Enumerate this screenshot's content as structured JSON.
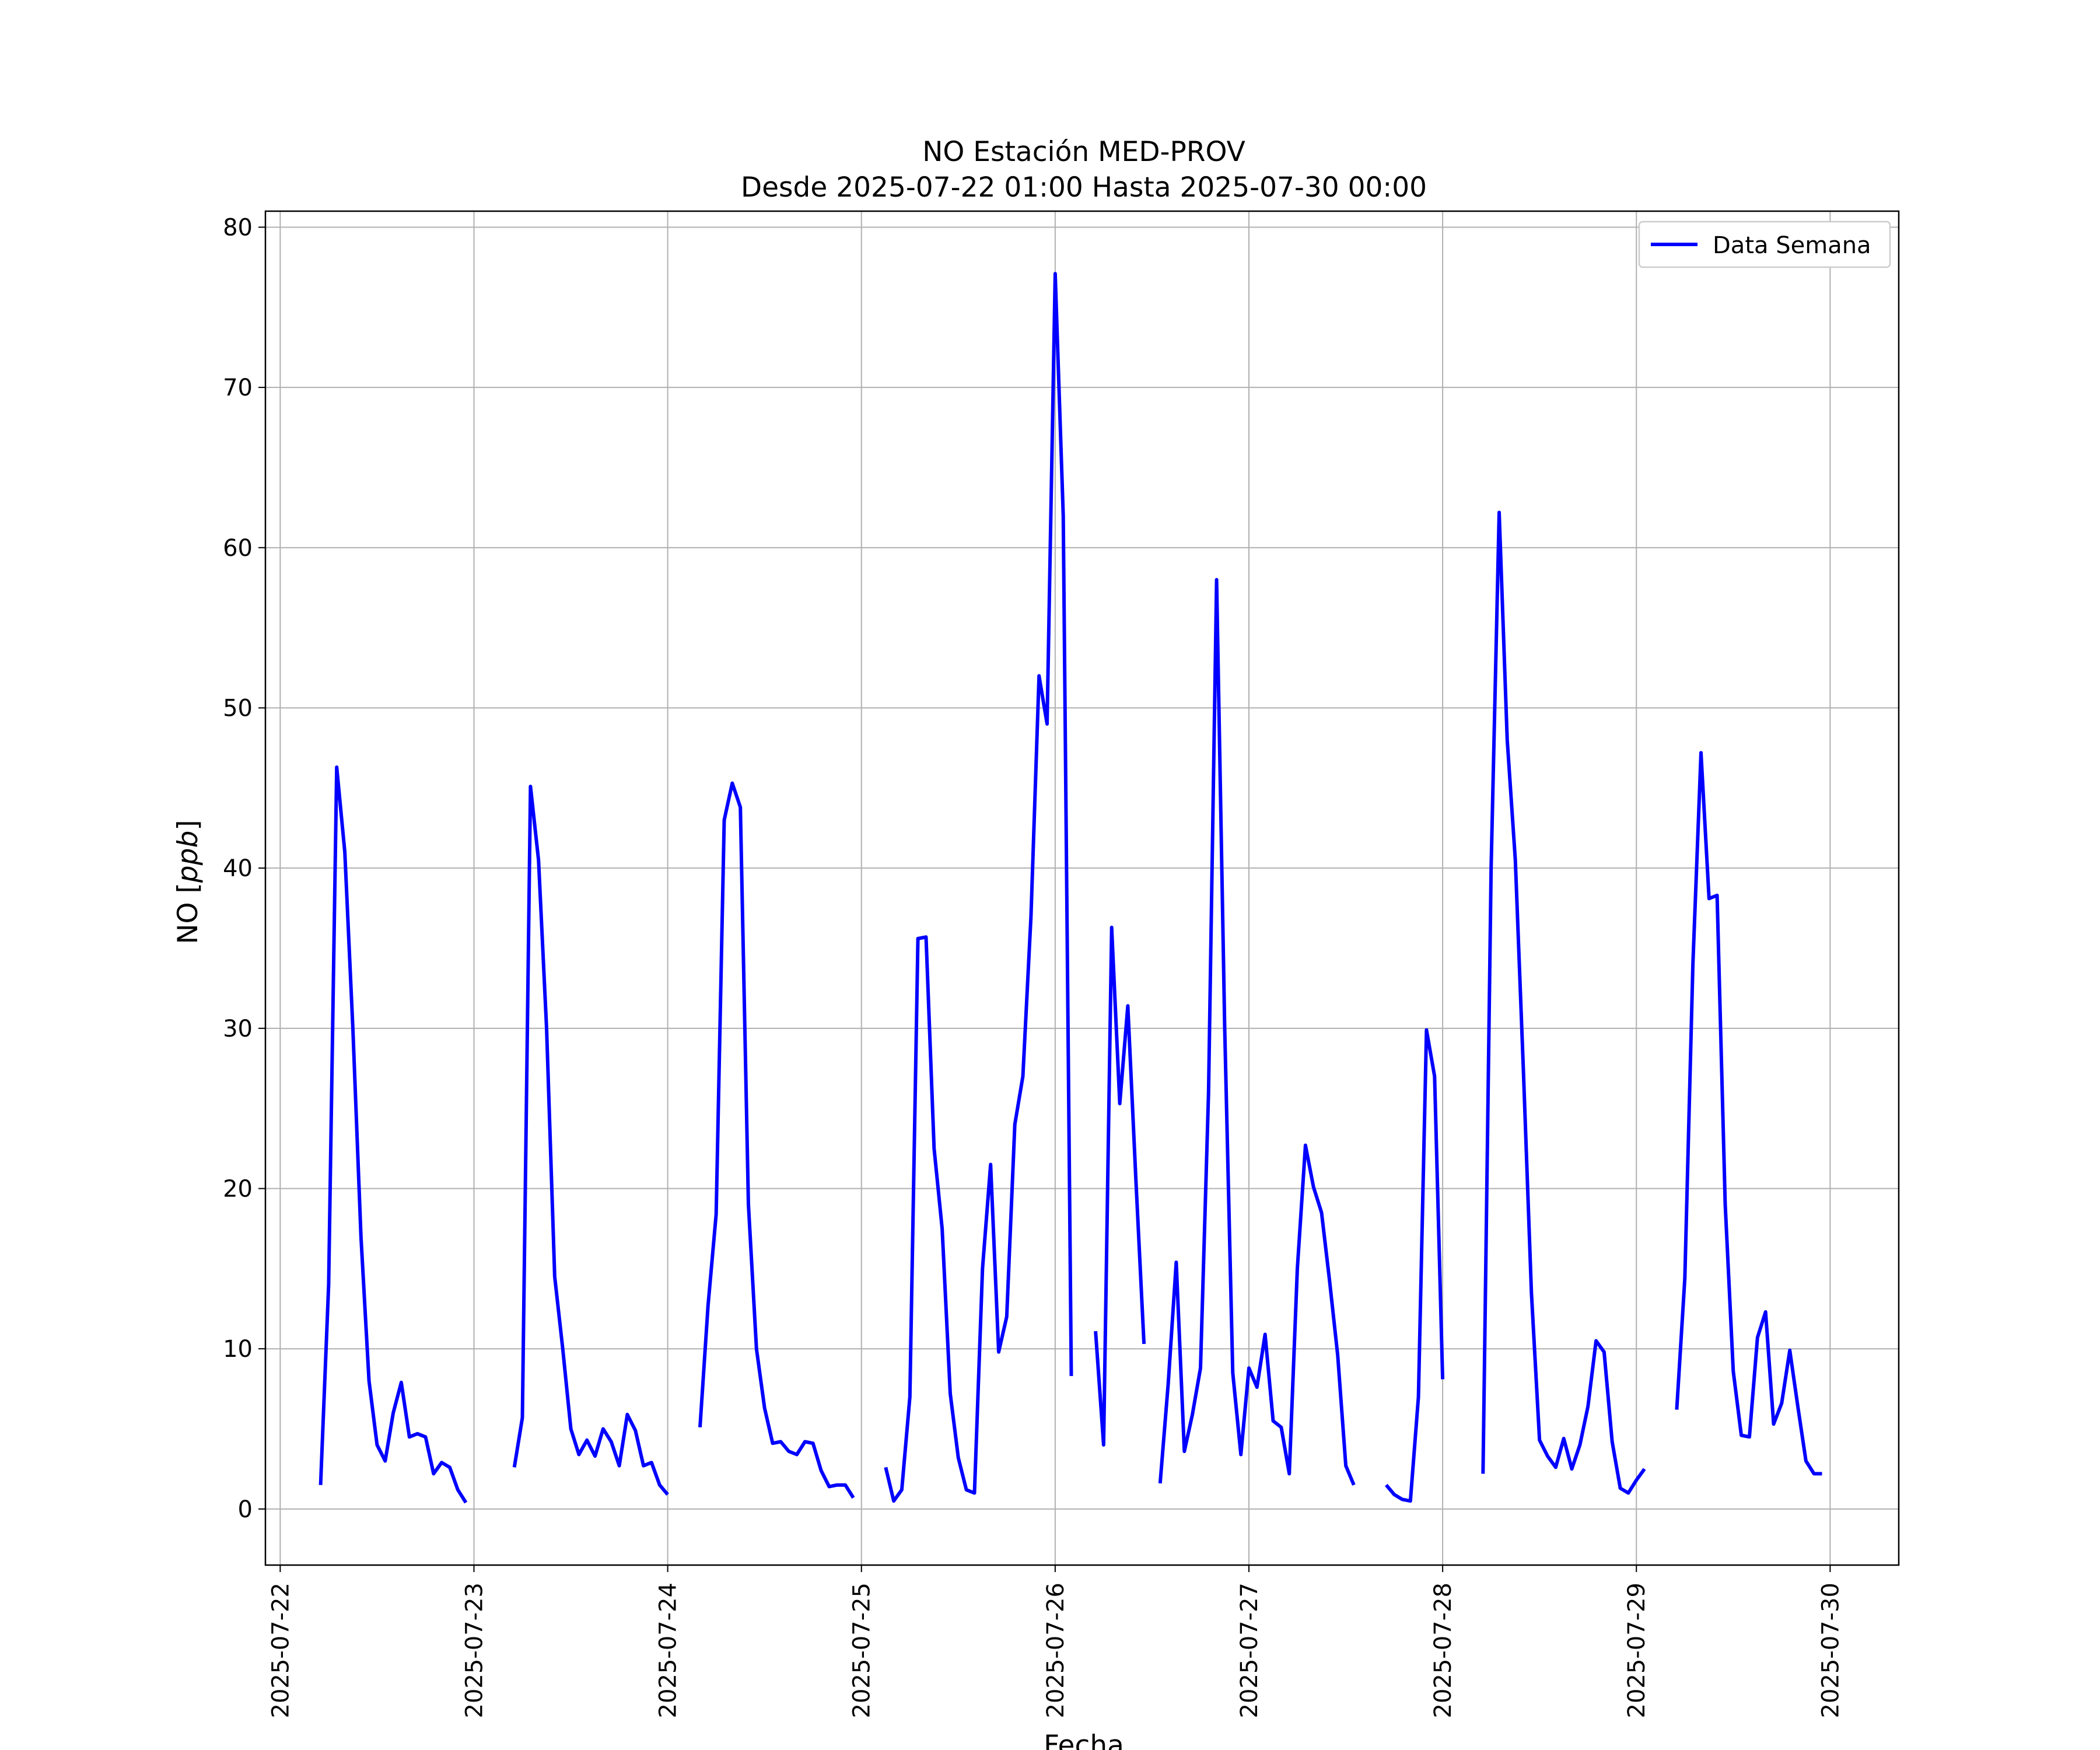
{
  "chart_data": {
    "type": "line",
    "title": "NO Estación MED-PROV",
    "subtitle": "Desde 2025-07-22 01:00 Hasta 2025-07-30 00:00",
    "xlabel": "Fecha",
    "ylabel_text": "NO [",
    "ylabel_unit": "ppb",
    "ylabel_close": "]",
    "x_type": "datetime",
    "xlim": [
      "2025-07-21 22:10",
      "2025-07-30 08:30"
    ],
    "ylim": [
      -3.5,
      81
    ],
    "x_ticks": [
      "2025-07-22",
      "2025-07-23",
      "2025-07-24",
      "2025-07-25",
      "2025-07-26",
      "2025-07-27",
      "2025-07-28",
      "2025-07-29",
      "2025-07-30"
    ],
    "y_ticks": [
      0,
      10,
      20,
      30,
      40,
      50,
      60,
      70,
      80
    ],
    "grid": true,
    "legend_position": "top-right",
    "series": [
      {
        "name": "Data Semana",
        "color": "#0000ff",
        "segments": [
          [
            [
              "2025-07-22 05:00",
              1.5
            ],
            [
              "2025-07-22 06:00",
              14
            ],
            [
              "2025-07-22 07:00",
              46.3
            ],
            [
              "2025-07-22 08:00",
              41
            ],
            [
              "2025-07-22 09:00",
              30
            ],
            [
              "2025-07-22 10:00",
              17
            ],
            [
              "2025-07-22 11:00",
              8
            ],
            [
              "2025-07-22 12:00",
              4
            ],
            [
              "2025-07-22 13:00",
              3
            ],
            [
              "2025-07-22 14:00",
              6
            ],
            [
              "2025-07-22 15:00",
              7.9
            ],
            [
              "2025-07-22 16:00",
              4.5
            ],
            [
              "2025-07-22 17:00",
              4.7
            ],
            [
              "2025-07-22 18:00",
              4.5
            ],
            [
              "2025-07-22 19:00",
              2.2
            ],
            [
              "2025-07-22 20:00",
              2.9
            ],
            [
              "2025-07-22 21:00",
              2.6
            ],
            [
              "2025-07-22 22:00",
              1.2
            ],
            [
              "2025-07-22 23:00",
              0.4
            ]
          ],
          [
            [
              "2025-07-23 05:00",
              2.6
            ],
            [
              "2025-07-23 06:00",
              5.7
            ],
            [
              "2025-07-23 07:00",
              45.1
            ],
            [
              "2025-07-23 08:00",
              40.5
            ],
            [
              "2025-07-23 09:00",
              30
            ],
            [
              "2025-07-23 10:00",
              14.5
            ],
            [
              "2025-07-23 11:00",
              10
            ],
            [
              "2025-07-23 12:00",
              5
            ],
            [
              "2025-07-23 13:00",
              3.4
            ],
            [
              "2025-07-23 14:00",
              4.3
            ],
            [
              "2025-07-23 15:00",
              3.3
            ],
            [
              "2025-07-23 16:00",
              5
            ],
            [
              "2025-07-23 17:00",
              4.2
            ],
            [
              "2025-07-23 18:00",
              2.7
            ],
            [
              "2025-07-23 19:00",
              5.9
            ],
            [
              "2025-07-23 20:00",
              4.9
            ],
            [
              "2025-07-23 21:00",
              2.7
            ],
            [
              "2025-07-23 22:00",
              2.9
            ],
            [
              "2025-07-23 23:00",
              1.5
            ],
            [
              "2025-07-24 00:00",
              0.9
            ]
          ],
          [
            [
              "2025-07-24 04:00",
              5.1
            ],
            [
              "2025-07-24 05:00",
              12.7
            ],
            [
              "2025-07-24 06:00",
              18.4
            ],
            [
              "2025-07-24 07:00",
              43
            ],
            [
              "2025-07-24 08:00",
              45.3
            ],
            [
              "2025-07-24 09:00",
              43.8
            ],
            [
              "2025-07-24 10:00",
              19
            ],
            [
              "2025-07-24 11:00",
              10
            ],
            [
              "2025-07-24 12:00",
              6.3
            ],
            [
              "2025-07-24 13:00",
              4.1
            ],
            [
              "2025-07-24 14:00",
              4.2
            ],
            [
              "2025-07-24 15:00",
              3.6
            ],
            [
              "2025-07-24 16:00",
              3.4
            ],
            [
              "2025-07-24 17:00",
              4.2
            ],
            [
              "2025-07-24 18:00",
              4.1
            ],
            [
              "2025-07-24 19:00",
              2.4
            ],
            [
              "2025-07-24 20:00",
              1.4
            ],
            [
              "2025-07-24 21:00",
              1.5
            ],
            [
              "2025-07-24 22:00",
              1.5
            ],
            [
              "2025-07-24 23:00",
              0.7
            ]
          ],
          [
            [
              "2025-07-25 03:00",
              2.6
            ],
            [
              "2025-07-25 04:00",
              0.5
            ],
            [
              "2025-07-25 05:00",
              1.2
            ],
            [
              "2025-07-25 06:00",
              7
            ],
            [
              "2025-07-25 07:00",
              35.6
            ],
            [
              "2025-07-25 08:00",
              35.7
            ],
            [
              "2025-07-25 09:00",
              22.5
            ],
            [
              "2025-07-25 10:00",
              17.5
            ],
            [
              "2025-07-25 11:00",
              7.2
            ],
            [
              "2025-07-25 12:00",
              3.2
            ],
            [
              "2025-07-25 13:00",
              1.2
            ],
            [
              "2025-07-25 14:00",
              1
            ],
            [
              "2025-07-25 15:00",
              15
            ],
            [
              "2025-07-25 16:00",
              21.5
            ],
            [
              "2025-07-25 17:00",
              9.8
            ],
            [
              "2025-07-25 18:00",
              12
            ],
            [
              "2025-07-25 19:00",
              24
            ],
            [
              "2025-07-25 20:00",
              27
            ],
            [
              "2025-07-25 21:00",
              37
            ],
            [
              "2025-07-25 22:00",
              52
            ],
            [
              "2025-07-25 23:00",
              49
            ],
            [
              "2025-07-26 00:00",
              77.1
            ],
            [
              "2025-07-26 01:00",
              62
            ],
            [
              "2025-07-26 02:00",
              8.3
            ]
          ],
          [
            [
              "2025-07-26 05:00",
              11.1
            ],
            [
              "2025-07-26 06:00",
              4
            ],
            [
              "2025-07-26 07:00",
              36.3
            ],
            [
              "2025-07-26 08:00",
              25.3
            ],
            [
              "2025-07-26 09:00",
              31.4
            ],
            [
              "2025-07-26 10:00",
              20.5
            ],
            [
              "2025-07-26 11:00",
              10.3
            ]
          ],
          [
            [
              "2025-07-26 13:00",
              1.6
            ],
            [
              "2025-07-26 14:00",
              7.8
            ],
            [
              "2025-07-26 15:00",
              15.4
            ],
            [
              "2025-07-26 16:00",
              3.6
            ],
            [
              "2025-07-26 17:00",
              5.9
            ],
            [
              "2025-07-26 18:00",
              8.8
            ],
            [
              "2025-07-26 19:00",
              26
            ],
            [
              "2025-07-26 20:00",
              58
            ],
            [
              "2025-07-26 21:00",
              30
            ],
            [
              "2025-07-26 22:00",
              8.5
            ],
            [
              "2025-07-26 23:00",
              3.4
            ],
            [
              "2025-07-27 00:00",
              8.8
            ],
            [
              "2025-07-27 01:00",
              7.6
            ],
            [
              "2025-07-27 02:00",
              10.9
            ],
            [
              "2025-07-27 03:00",
              5.5
            ],
            [
              "2025-07-27 04:00",
              5.1
            ],
            [
              "2025-07-27 05:00",
              2.2
            ],
            [
              "2025-07-27 06:00",
              15
            ],
            [
              "2025-07-27 07:00",
              22.7
            ],
            [
              "2025-07-27 08:00",
              20.1
            ],
            [
              "2025-07-27 09:00",
              18.5
            ],
            [
              "2025-07-27 10:00",
              14.2
            ],
            [
              "2025-07-27 11:00",
              9.6
            ],
            [
              "2025-07-27 12:00",
              2.7
            ],
            [
              "2025-07-27 13:00",
              1.5
            ]
          ],
          [
            [
              "2025-07-27 17:00",
              1.5
            ],
            [
              "2025-07-27 18:00",
              0.9
            ],
            [
              "2025-07-27 19:00",
              0.6
            ],
            [
              "2025-07-27 20:00",
              0.5
            ],
            [
              "2025-07-27 21:00",
              7
            ],
            [
              "2025-07-27 22:00",
              29.9
            ],
            [
              "2025-07-27 23:00",
              27
            ],
            [
              "2025-07-28 00:00",
              8.1
            ]
          ],
          [
            [
              "2025-07-28 05:00",
              2.2
            ],
            [
              "2025-07-28 06:00",
              40
            ],
            [
              "2025-07-28 07:00",
              62.2
            ],
            [
              "2025-07-28 08:00",
              48
            ],
            [
              "2025-07-28 09:00",
              40.5
            ],
            [
              "2025-07-28 10:00",
              27.4
            ],
            [
              "2025-07-28 11:00",
              13.5
            ],
            [
              "2025-07-28 12:00",
              4.3
            ],
            [
              "2025-07-28 13:00",
              3.3
            ],
            [
              "2025-07-28 14:00",
              2.6
            ],
            [
              "2025-07-28 15:00",
              4.4
            ],
            [
              "2025-07-28 16:00",
              2.5
            ],
            [
              "2025-07-28 17:00",
              4
            ],
            [
              "2025-07-28 18:00",
              6.4
            ],
            [
              "2025-07-28 19:00",
              10.5
            ],
            [
              "2025-07-28 20:00",
              9.8
            ],
            [
              "2025-07-28 21:00",
              4.2
            ],
            [
              "2025-07-28 22:00",
              1.3
            ],
            [
              "2025-07-28 23:00",
              1
            ],
            [
              "2025-07-29 00:00",
              1.8
            ],
            [
              "2025-07-29 01:00",
              2.5
            ]
          ],
          [
            [
              "2025-07-29 05:00",
              6.2
            ],
            [
              "2025-07-29 06:00",
              14.4
            ],
            [
              "2025-07-29 07:00",
              34
            ],
            [
              "2025-07-29 08:00",
              47.2
            ],
            [
              "2025-07-29 09:00",
              38.1
            ],
            [
              "2025-07-29 10:00",
              38.3
            ],
            [
              "2025-07-29 11:00",
              19
            ],
            [
              "2025-07-29 12:00",
              8.6
            ],
            [
              "2025-07-29 13:00",
              4.6
            ],
            [
              "2025-07-29 14:00",
              4.5
            ],
            [
              "2025-07-29 15:00",
              10.7
            ],
            [
              "2025-07-29 16:00",
              12.3
            ],
            [
              "2025-07-29 17:00",
              5.3
            ],
            [
              "2025-07-29 18:00",
              6.6
            ],
            [
              "2025-07-29 19:00",
              9.9
            ],
            [
              "2025-07-29 20:00",
              6.4
            ],
            [
              "2025-07-29 21:00",
              3
            ],
            [
              "2025-07-29 22:00",
              2.2
            ],
            [
              "2025-07-29 23:00",
              2.2
            ]
          ]
        ]
      }
    ]
  }
}
